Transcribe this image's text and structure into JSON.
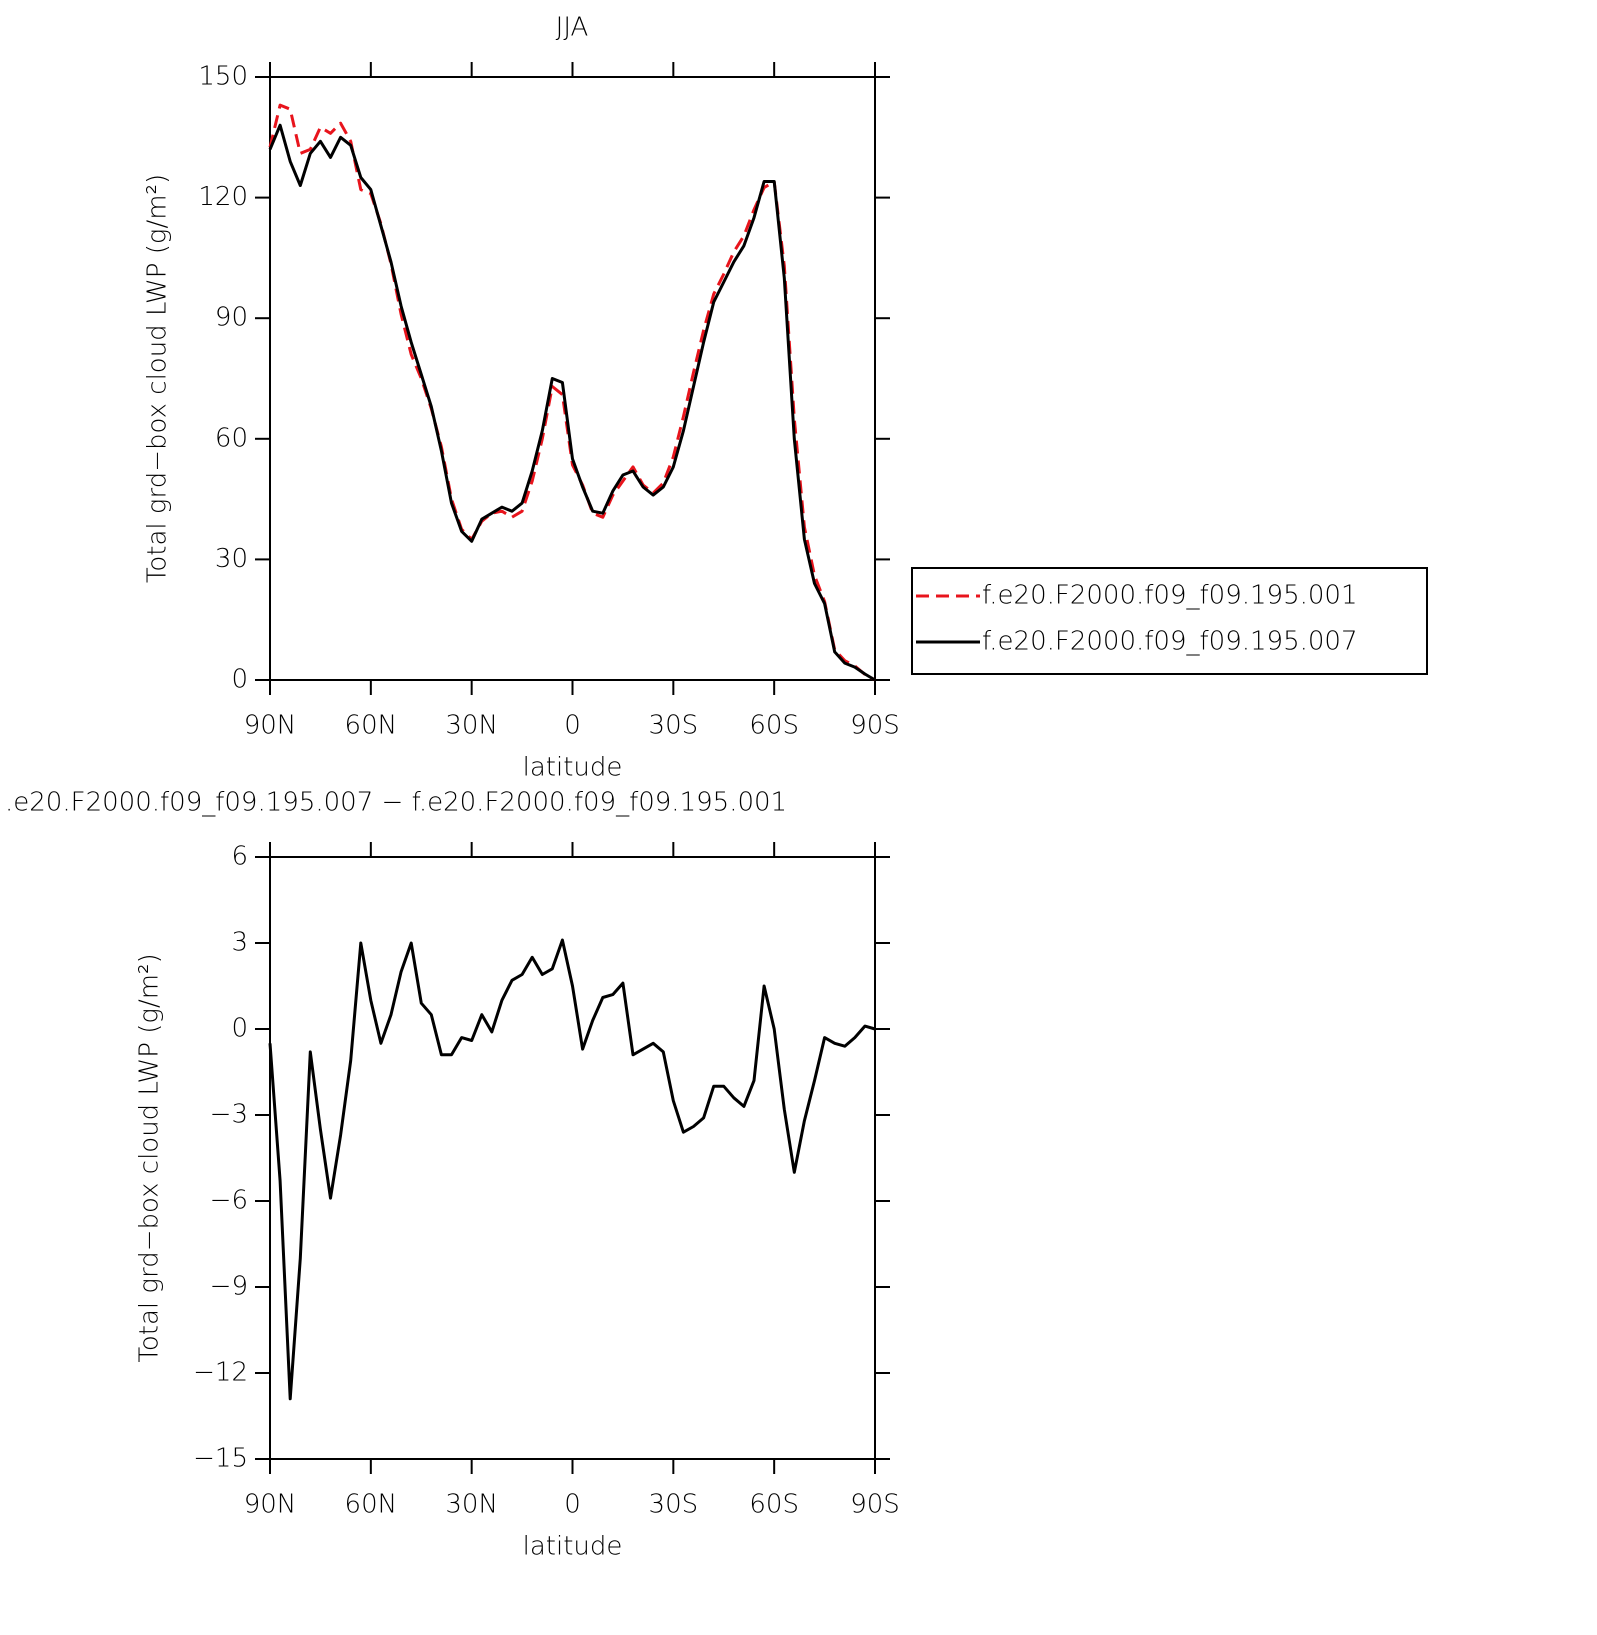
{
  "chart_data": [
    {
      "type": "line",
      "title": "JJA",
      "xlabel": "latitude",
      "ylabel": "Total grd−box cloud LWP (g/m²)",
      "x": [
        90,
        87,
        84,
        81,
        78,
        75,
        72,
        69,
        66,
        63,
        60,
        57,
        54,
        51,
        48,
        45,
        42,
        39,
        36,
        33,
        30,
        27,
        24,
        21,
        18,
        15,
        12,
        9,
        6,
        3,
        0,
        -3,
        -6,
        -9,
        -12,
        -15,
        -18,
        -21,
        -24,
        -27,
        -30,
        -33,
        -36,
        -39,
        -42,
        -45,
        -48,
        -51,
        -54,
        -57,
        -60,
        -63,
        -66,
        -69,
        -72,
        -75,
        -78,
        -81,
        -84,
        -87,
        -90
      ],
      "series": [
        {
          "name": "f.e20.F2000.f09_f09.195.001",
          "color": "#e8141c",
          "dash": true,
          "values": [
            132.5,
            143,
            142,
            131,
            132,
            137.5,
            136,
            138.5,
            134,
            122,
            121,
            113.5,
            103.5,
            91,
            81,
            75,
            67.5,
            58,
            45,
            37.5,
            35,
            39.5,
            41.5,
            42,
            40.5,
            42,
            49.5,
            60,
            73,
            71,
            53.5,
            48.5,
            41.5,
            40.5,
            46,
            49.5,
            53,
            48.5,
            46.5,
            49,
            55.5,
            65.5,
            76.5,
            87,
            96,
            101,
            106.5,
            110.5,
            117,
            122.5,
            124,
            103,
            65,
            38,
            26,
            19.5,
            7.5,
            4.8,
            3.5,
            1.4,
            0
          ]
        },
        {
          "name": "f.e20.F2000.f09_f09.195.007",
          "color": "#000000",
          "dash": false,
          "values": [
            132,
            138,
            129,
            123,
            131,
            134,
            130,
            135,
            133,
            125,
            122,
            113,
            104,
            93,
            84,
            76,
            68,
            57,
            44,
            37,
            34.5,
            40,
            41.5,
            43,
            42,
            44,
            52,
            62,
            75,
            74,
            55,
            48,
            42,
            41.5,
            47,
            51,
            52,
            48,
            46,
            48,
            53,
            62,
            73,
            84,
            94,
            99,
            104,
            108,
            115,
            124,
            124,
            100,
            60,
            35,
            24,
            19,
            7,
            4.2,
            3.2,
            1.5,
            0
          ]
        }
      ],
      "xlim": [
        90,
        -90
      ],
      "xticks": [
        {
          "value": 90,
          "label": "90N"
        },
        {
          "value": 60,
          "label": "60N"
        },
        {
          "value": 30,
          "label": "30N"
        },
        0,
        {
          "value": -30,
          "label": "30S"
        },
        {
          "value": -60,
          "label": "60S"
        },
        {
          "value": -90,
          "label": "90S"
        }
      ],
      "ylim": [
        0,
        150
      ],
      "yticks": [
        0,
        30,
        60,
        90,
        120,
        150
      ],
      "legend": "right"
    },
    {
      "type": "line",
      "title": ".e20.F2000.f09_f09.195.007 − f.e20.F2000.f09_f09.195.001",
      "xlabel": "latitude",
      "ylabel": "Total grd−box cloud LWP (g/m²)",
      "x": [
        90,
        87,
        84,
        81,
        78,
        75,
        72,
        69,
        66,
        63,
        60,
        57,
        54,
        51,
        48,
        45,
        42,
        39,
        36,
        33,
        30,
        27,
        24,
        21,
        18,
        15,
        12,
        9,
        6,
        3,
        0,
        -3,
        -6,
        -9,
        -12,
        -15,
        -18,
        -21,
        -24,
        -27,
        -30,
        -33,
        -36,
        -39,
        -42,
        -45,
        -48,
        -51,
        -54,
        -57,
        -60,
        -63,
        -66,
        -69,
        -72,
        -75,
        -78,
        -81,
        -84,
        -87,
        -90
      ],
      "series": [
        {
          "color": "#000000",
          "dash": false,
          "values": [
            -0.5,
            -5.3,
            -12.9,
            -8,
            -0.8,
            -3.5,
            -5.9,
            -3.7,
            -1.1,
            3.0,
            1.0,
            -0.5,
            0.5,
            2,
            3.0,
            0.9,
            0.5,
            -0.9,
            -0.9,
            -0.3,
            -0.4,
            0.5,
            -0.1,
            1.0,
            1.7,
            1.9,
            2.5,
            1.9,
            2.1,
            3.1,
            1.5,
            -0.7,
            0.3,
            1.1,
            1.2,
            1.6,
            -0.9,
            -0.7,
            -0.5,
            -0.8,
            -2.5,
            -3.6,
            -3.4,
            -3.1,
            -2.0,
            -2.0,
            -2.4,
            -2.7,
            -1.8,
            1.5,
            0.0,
            -2.8,
            -5.0,
            -3.2,
            -1.8,
            -0.3,
            -0.5,
            -0.6,
            -0.3,
            0.1,
            0.0
          ]
        }
      ],
      "xlim": [
        90,
        -90
      ],
      "xticks": [
        {
          "value": 90,
          "label": "90N"
        },
        {
          "value": 60,
          "label": "60N"
        },
        {
          "value": 30,
          "label": "30N"
        },
        0,
        {
          "value": -30,
          "label": "30S"
        },
        {
          "value": -60,
          "label": "60S"
        },
        {
          "value": -90,
          "label": "90S"
        }
      ],
      "ylim": [
        -15,
        6
      ],
      "yticks": [
        6,
        {
          "value": 3,
          "label": "3"
        },
        0,
        {
          "value": -3,
          "label": "−3"
        },
        {
          "value": -6,
          "label": "−6"
        },
        {
          "value": -9,
          "label": "−9"
        },
        {
          "value": -12,
          "label": "−12"
        },
        {
          "value": -15,
          "label": "−15"
        }
      ]
    }
  ]
}
